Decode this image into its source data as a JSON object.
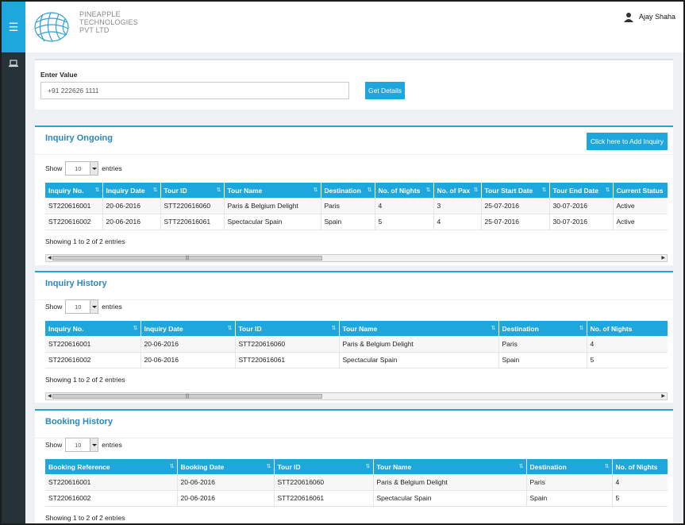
{
  "header": {
    "company_line1": "PINEAPPLE",
    "company_line2": "TECHNOLOGIES",
    "company_line3": "PVT LTD",
    "user_name": "Ajay Shaha"
  },
  "sidebar": {
    "menu_icon": "hamburger-icon",
    "items": [
      {
        "icon": "laptop-icon"
      }
    ]
  },
  "enter_value": {
    "label": "Enter Value",
    "input_value": "+91 222626 1111",
    "button_label": "Get Details"
  },
  "inquiry_ongoing": {
    "title": "Inquiry Ongoing",
    "add_button": "Click here to Add Inquiry",
    "show_label": "Show",
    "entries_value": "10",
    "entries_label": "entries",
    "columns": [
      "Inquiry No.",
      "Inquiry Date",
      "Tour ID",
      "Tour Name",
      "Destination",
      "No. of Nights",
      "No. of Pax",
      "Tour Start Date",
      "Tour End Date",
      "Current Status"
    ],
    "rows": [
      [
        "ST220616001",
        "20-06-2016",
        "STT220616060",
        "Paris & Belgium Delight",
        "Paris",
        "4",
        "3",
        "25-07-2016",
        "30-07-2016",
        "Active"
      ],
      [
        "ST220616002",
        "20-06-2016",
        "STT220616061",
        "Spectacular Spain",
        "Spain",
        "5",
        "4",
        "25-07-2016",
        "30-07-2016",
        "Active"
      ]
    ],
    "info": "Showing 1 to 2 of 2 entries"
  },
  "inquiry_history": {
    "title": "Inquiry History",
    "show_label": "Show",
    "entries_value": "10",
    "entries_label": "entries",
    "columns": [
      "Inquiry No.",
      "Inquiry Date",
      "Tour ID",
      "Tour Name",
      "Destination",
      "No. of Nights"
    ],
    "rows": [
      [
        "ST220616001",
        "20-06-2016",
        "STT220616060",
        "Paris & Belgium Delight",
        "Paris",
        "4"
      ],
      [
        "ST220616002",
        "20-06-2016",
        "STT220616061",
        "Spectacular Spain",
        "Spain",
        "5"
      ]
    ],
    "info": "Showing 1 to 2 of 2 entries"
  },
  "booking_history": {
    "title": "Booking History",
    "show_label": "Show",
    "entries_value": "10",
    "entries_label": "entries",
    "columns": [
      "Booking Reference",
      "Booking Date",
      "Tour ID",
      "Tour Name",
      "Destination",
      "No. of Nights"
    ],
    "rows": [
      [
        "ST220616001",
        "20-06-2016",
        "STT220616060",
        "Paris & Belgium Delight",
        "Paris",
        "4"
      ],
      [
        "ST220616002",
        "20-06-2016",
        "STT220616061",
        "Spectacular Spain",
        "Spain",
        "5"
      ]
    ],
    "info": "Showing 1 to 2 of 2 entries"
  },
  "colors": {
    "accent": "#1ea7dd",
    "sidebar": "#263238",
    "title": "#2a87c0"
  }
}
